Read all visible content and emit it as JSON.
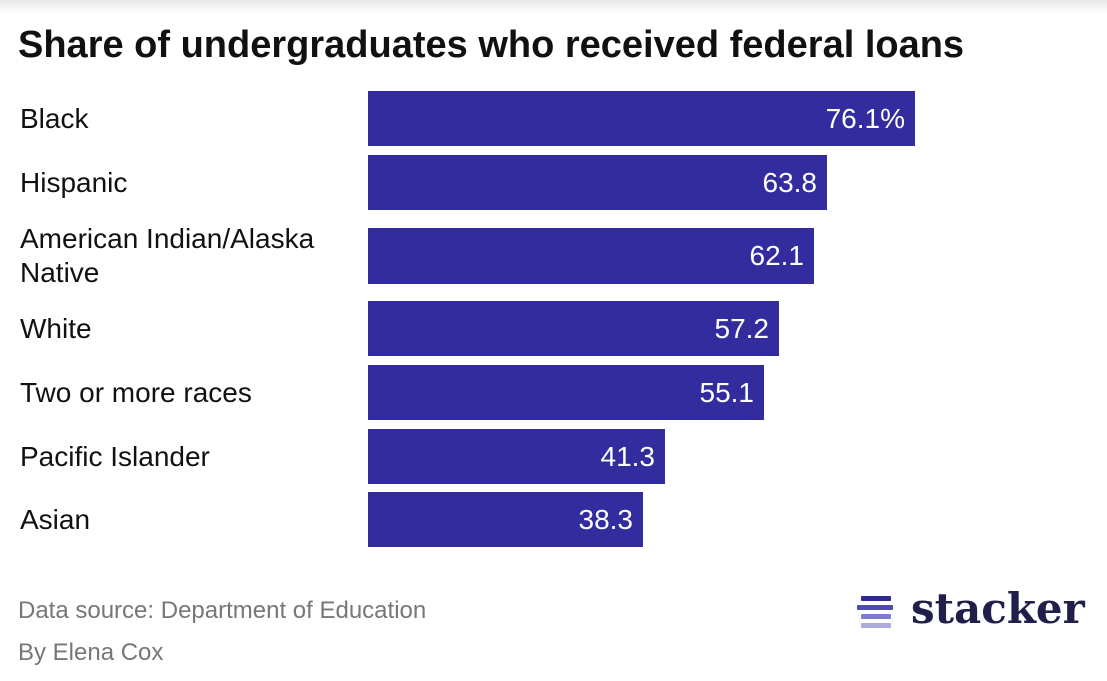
{
  "title": "Share of undergraduates who received federal loans",
  "chart_data": {
    "type": "bar",
    "orientation": "horizontal",
    "categories": [
      "Black",
      "Hispanic",
      "American Indian/Alaska Native",
      "White",
      "Two or more races",
      "Pacific Islander",
      "Asian"
    ],
    "values": [
      76.1,
      63.8,
      62.1,
      57.2,
      55.1,
      41.3,
      38.3
    ],
    "value_labels": [
      "76.1%",
      "63.8",
      "62.1",
      "57.2",
      "55.1",
      "41.3",
      "38.3"
    ],
    "unit": "%",
    "xlim": [
      0,
      100
    ],
    "grid": false,
    "legend": "none",
    "bar_color": "#332c9e"
  },
  "footer": {
    "source": "Data source: Department of Education",
    "byline": "By Elena Cox"
  },
  "logo": {
    "text": "stacker",
    "icon": "stacker-lines-icon",
    "text_color": "#1f1f4a",
    "mark_colors": [
      "#2e2a8f",
      "#4f4bb5",
      "#7f7ccf",
      "#aeacdf"
    ]
  }
}
